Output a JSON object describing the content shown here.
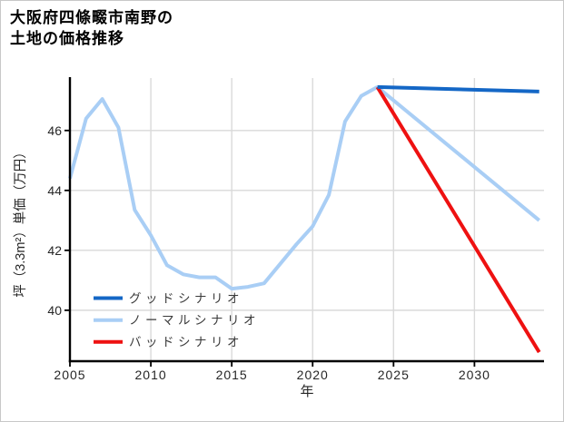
{
  "title": {
    "line1": "大阪府四條畷市南野の",
    "line2": "土地の価格推移"
  },
  "chart_data": {
    "type": "line",
    "title": "大阪府四條畷市南野の土地の価格推移",
    "xlabel": "年",
    "ylabel": "坪（3.3m²）単価（万円）",
    "xlim": [
      2005,
      2034.3
    ],
    "ylim": [
      38.3,
      47.75
    ],
    "xticks": [
      2005,
      2010,
      2015,
      2020,
      2025,
      2030
    ],
    "yticks": [
      40,
      42,
      44,
      46
    ],
    "grid": true,
    "grid_color": "#dadada",
    "axis_color": "#000000",
    "history": {
      "color": "#a9cef5",
      "years": [
        2005,
        2006,
        2007,
        2008,
        2009,
        2010,
        2011,
        2012,
        2013,
        2014,
        2015,
        2016,
        2017,
        2018,
        2019,
        2020,
        2021,
        2022,
        2023,
        2024
      ],
      "values": [
        44.4,
        46.4,
        47.05,
        46.1,
        43.35,
        42.5,
        41.5,
        41.2,
        41.1,
        41.1,
        40.72,
        40.78,
        40.9,
        41.55,
        42.2,
        42.8,
        43.85,
        46.3,
        47.15,
        47.45
      ]
    },
    "forecast": [
      {
        "label": "グッドシナリオ",
        "color": "#1467c6",
        "years": [
          2024,
          2034
        ],
        "values": [
          47.45,
          47.3
        ]
      },
      {
        "label": "ノーマルシナリオ",
        "color": "#a9cef5",
        "years": [
          2024,
          2034
        ],
        "values": [
          47.45,
          43.0
        ]
      },
      {
        "label": "バッドシナリオ",
        "color": "#ee1111",
        "years": [
          2024,
          2034
        ],
        "values": [
          47.45,
          38.6
        ]
      }
    ],
    "legend": [
      {
        "label": "グッドシナリオ",
        "color": "#1467c6"
      },
      {
        "label": "ノーマルシナリオ",
        "color": "#a9cef5"
      },
      {
        "label": "バッドシナリオ",
        "color": "#ee1111"
      }
    ],
    "legend_position": "inside-lower-left"
  }
}
